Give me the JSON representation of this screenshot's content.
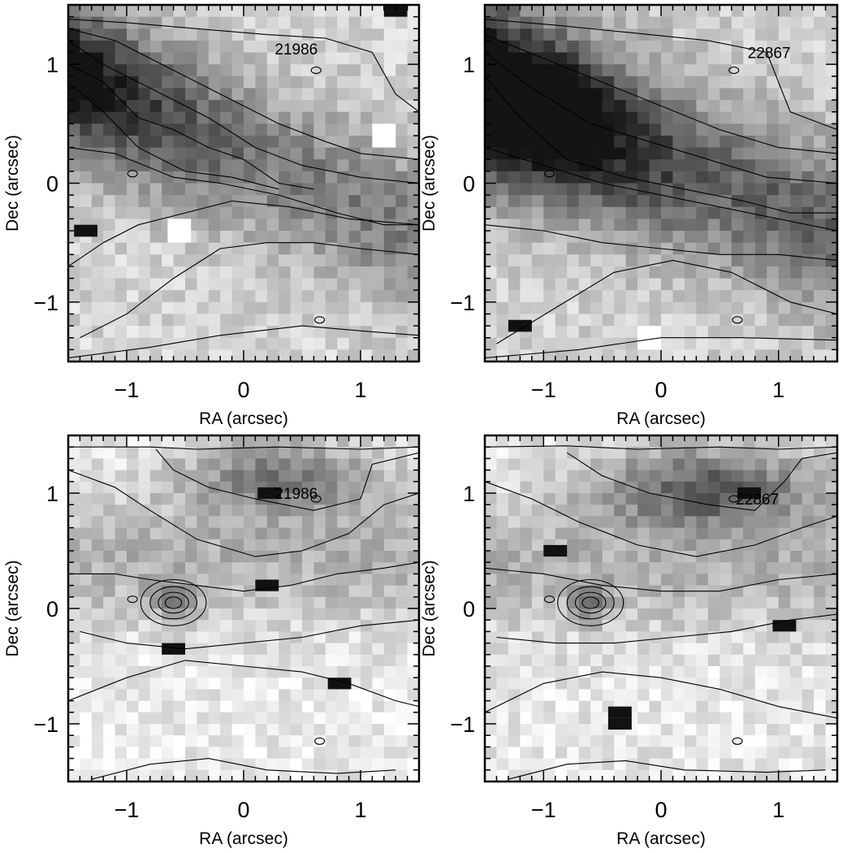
{
  "chart_data": [
    {
      "type": "heatmap",
      "colormap": "grayscale (dark = high)",
      "contours": true,
      "annotation": "21986",
      "xlabel": "RA (arcsec)",
      "ylabel": "Dec (arcsec)",
      "xlim": [
        -1.5,
        1.5
      ],
      "ylim": [
        -1.5,
        1.5
      ],
      "xticks": [
        -1,
        0,
        1
      ],
      "yticks": [
        -1,
        0,
        1
      ],
      "xtick_labels": [
        "−1",
        "0",
        "1"
      ],
      "ytick_labels": [
        "−1",
        "0",
        "1"
      ],
      "pattern": "diagonal band from upper-left, darkest near (-1.3, 0.9)",
      "dark_pixels": [
        [
          1.3,
          1.45
        ],
        [
          -1.35,
          -0.4
        ]
      ],
      "bright_pixels": [
        [
          -0.55,
          -0.4
        ],
        [
          1.2,
          0.4
        ]
      ]
    },
    {
      "type": "heatmap",
      "colormap": "grayscale (dark = high)",
      "contours": true,
      "annotation": "22867",
      "xlabel": "RA (arcsec)",
      "ylabel": "Dec (arcsec)",
      "xlim": [
        -1.5,
        1.5
      ],
      "ylim": [
        -1.5,
        1.5
      ],
      "xticks": [
        -1,
        0,
        1
      ],
      "yticks": [
        -1,
        0,
        1
      ],
      "xtick_labels": [
        "−1",
        "0",
        "1"
      ],
      "ytick_labels": [
        "−1",
        "0",
        "1"
      ],
      "pattern": "strong diagonal band from upper-left, darkest near (-1.0, 0.6)",
      "dark_pixels": [
        [
          -1.2,
          -1.2
        ]
      ],
      "bright_pixels": [
        [
          -0.1,
          -1.3
        ]
      ]
    },
    {
      "type": "heatmap",
      "colormap": "grayscale (dark = high)",
      "contours": true,
      "annotation": "21986",
      "xlabel": "RA (arcsec)",
      "ylabel": "Dec (arcsec)",
      "xlim": [
        -1.5,
        1.5
      ],
      "ylim": [
        -1.5,
        1.5
      ],
      "xticks": [
        -1,
        0,
        1
      ],
      "yticks": [
        -1,
        0,
        1
      ],
      "xtick_labels": [
        "−1",
        "0",
        "1"
      ],
      "ytick_labels": [
        "−1",
        "0",
        "1"
      ],
      "pattern": "arc near top edge, compact source at (-0.6, 0.05)",
      "dark_pixels": [
        [
          0.22,
          1.0
        ],
        [
          0.2,
          0.2
        ],
        [
          0.82,
          -0.65
        ],
        [
          -0.6,
          -0.35
        ]
      ],
      "bright_pixels": []
    },
    {
      "type": "heatmap",
      "colormap": "grayscale (dark = high)",
      "contours": true,
      "annotation": "22867",
      "xlabel": "RA (arcsec)",
      "ylabel": "Dec (arcsec)",
      "xlim": [
        -1.5,
        1.5
      ],
      "ylim": [
        -1.5,
        1.5
      ],
      "xticks": [
        -1,
        0,
        1
      ],
      "yticks": [
        -1,
        0,
        1
      ],
      "xtick_labels": [
        "−1",
        "0",
        "1"
      ],
      "ytick_labels": [
        "−1",
        "0",
        "1"
      ],
      "pattern": "arc near top edge, compact source at (-0.6, 0.05)",
      "dark_pixels": [
        [
          -0.9,
          0.5
        ],
        [
          1.05,
          -0.15
        ],
        [
          -0.35,
          -0.9
        ],
        [
          -0.35,
          -1.0
        ],
        [
          0.75,
          1.0
        ]
      ],
      "bright_pixels": []
    }
  ]
}
